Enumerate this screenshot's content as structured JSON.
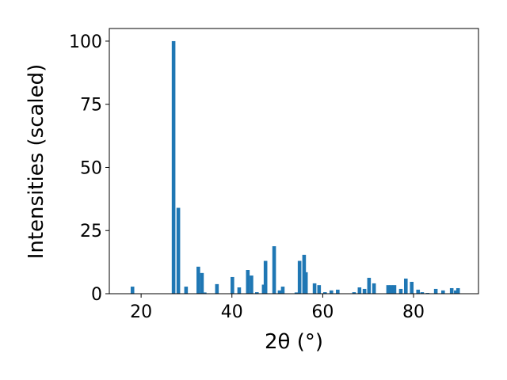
{
  "chart_data": {
    "type": "bar",
    "xlabel": "2θ (°)",
    "ylabel": "Intensities (scaled)",
    "color": "#1f77b4",
    "x": [
      18.1,
      27.15,
      28.2,
      29.9,
      32.6,
      33.4,
      34.0,
      36.7,
      40.1,
      41.6,
      43.5,
      44.3,
      45.5,
      47.0,
      47.4,
      49.3,
      50.5,
      51.2,
      54.2,
      54.9,
      55.9,
      56.3,
      58.2,
      59.2,
      60.5,
      61.9,
      63.3,
      66.9,
      68.1,
      69.2,
      70.2,
      71.3,
      74.4,
      75.1,
      75.8,
      77.2,
      78.3,
      79.6,
      81.0,
      81.9,
      83.1,
      84.9,
      86.5,
      88.4,
      89.3,
      89.8
    ],
    "values": [
      2.8,
      100,
      34,
      2.8,
      10.7,
      8.2,
      0.5,
      3.8,
      6.6,
      2.5,
      9.4,
      7.2,
      0.6,
      3.6,
      13,
      18.8,
      1.3,
      2.8,
      0.5,
      13,
      15.4,
      8.5,
      4.1,
      3.4,
      0.6,
      1.3,
      1.6,
      0.6,
      2.5,
      1.9,
      6.3,
      4.1,
      3.4,
      3.4,
      3.4,
      1.9,
      6,
      4.7,
      1.6,
      0.6,
      0.3,
      1.9,
      1.3,
      2.2,
      1.3,
      2.2
    ],
    "xlim": [
      13,
      94.3
    ],
    "ylim": [
      0,
      105
    ],
    "xticks": [
      20,
      40,
      60,
      80
    ],
    "yticks": [
      0,
      25,
      50,
      75,
      100
    ]
  }
}
